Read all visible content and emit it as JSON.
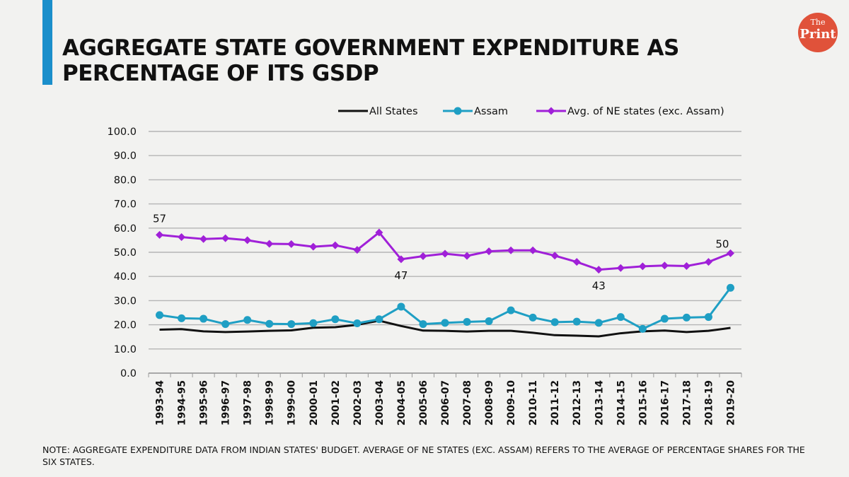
{
  "header": {
    "title": "AGGREGATE STATE GOVERNMENT EXPENDITURE AS PERCENTAGE OF ITS GSDP",
    "logo_text_small": "The",
    "logo_text_large": "Print",
    "accent_color": "#1b8fcb",
    "logo_color": "#e0523a"
  },
  "note": "NOTE: AGGREGATE EXPENDITURE DATA FROM INDIAN STATES' BUDGET. AVERAGE OF NE STATES (EXC. ASSAM) REFERS TO THE AVERAGE OF PERCENTAGE SHARES FOR THE SIX STATES.",
  "chart_data": {
    "type": "line",
    "title": "AGGREGATE STATE GOVERNMENT EXPENDITURE AS PERCENTAGE OF ITS GSDP",
    "xlabel": "",
    "ylabel": "",
    "ylim": [
      0,
      100
    ],
    "y_ticks": [
      0,
      10,
      20,
      30,
      40,
      50,
      60,
      70,
      80,
      90,
      100
    ],
    "y_tick_format": "one-decimal",
    "grid": true,
    "legend_position": "top",
    "categories": [
      "1993-94",
      "1994-95",
      "1995-96",
      "1996-97",
      "1997-98",
      "1998-99",
      "1999-00",
      "2000-01",
      "2001-02",
      "2002-03",
      "2003-04",
      "2004-05",
      "2005-06",
      "2006-07",
      "2007-08",
      "2008-09",
      "2009-10",
      "2010-11",
      "2011-12",
      "2012-13",
      "2013-14",
      "2014-15",
      "2015-16",
      "2016-17",
      "2017-18",
      "2018-19",
      "2019-20"
    ],
    "series": [
      {
        "name": "All States",
        "color": "#111111",
        "marker": "none",
        "values": [
          18.0,
          18.2,
          17.3,
          17.0,
          17.2,
          17.5,
          17.7,
          18.8,
          19.0,
          20.0,
          21.7,
          19.5,
          17.6,
          17.5,
          17.2,
          17.5,
          17.5,
          16.7,
          15.7,
          15.5,
          15.2,
          16.5,
          17.3,
          17.6,
          17.0,
          17.5,
          18.7
        ]
      },
      {
        "name": "Assam",
        "color": "#1f9fc4",
        "marker": "circle",
        "values": [
          24.0,
          22.7,
          22.5,
          20.3,
          22.0,
          20.4,
          20.3,
          20.7,
          22.3,
          20.6,
          22.3,
          27.5,
          20.3,
          20.8,
          21.2,
          21.5,
          26.0,
          23.0,
          21.1,
          21.3,
          20.8,
          23.2,
          18.3,
          22.5,
          23.0,
          23.2,
          35.3
        ]
      },
      {
        "name": "Avg. of NE states (exc. Assam)",
        "color": "#a020d8",
        "marker": "diamond",
        "values": [
          57.2,
          56.3,
          55.5,
          55.8,
          55.0,
          53.5,
          53.4,
          52.3,
          52.9,
          51.0,
          58.2,
          47.1,
          48.4,
          49.4,
          48.5,
          50.4,
          50.8,
          50.8,
          48.6,
          46.0,
          42.8,
          43.5,
          44.2,
          44.5,
          44.3,
          46.0,
          49.6
        ]
      }
    ],
    "annotations": [
      {
        "series": 2,
        "index": 0,
        "text": "57",
        "placement": "above"
      },
      {
        "series": 2,
        "index": 11,
        "text": "47",
        "placement": "below"
      },
      {
        "series": 2,
        "index": 20,
        "text": "43",
        "placement": "below"
      },
      {
        "series": 2,
        "index": 26,
        "text": "50",
        "placement": "above-left"
      }
    ]
  }
}
